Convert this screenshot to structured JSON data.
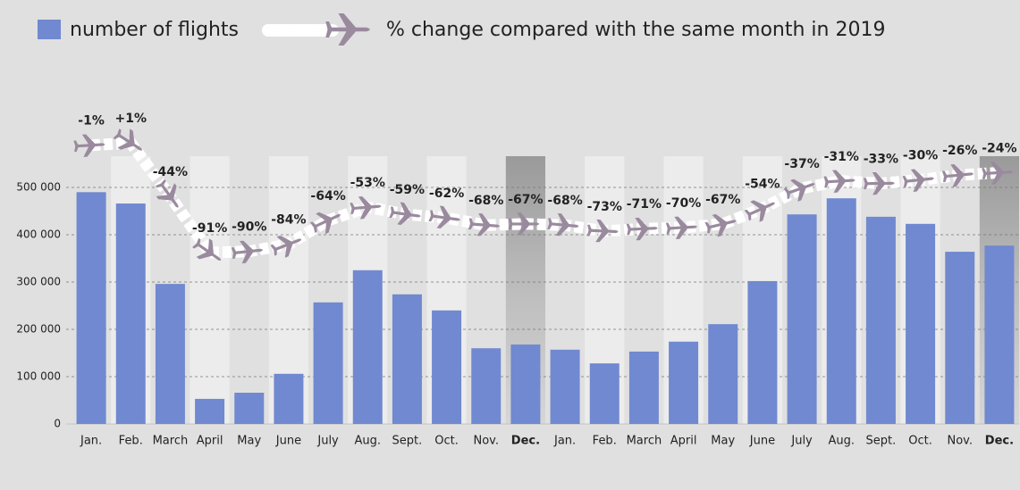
{
  "chart_data": {
    "type": "bar",
    "categories": [
      "Jan.",
      "Feb.",
      "March",
      "April",
      "May",
      "June",
      "July",
      "Aug.",
      "Sept.",
      "Oct.",
      "Nov.",
      "Dec.",
      "Jan.",
      "Feb.",
      "March",
      "April",
      "May",
      "June",
      "July",
      "Aug.",
      "Sept.",
      "Oct.",
      "Nov.",
      "Dec."
    ],
    "series": [
      {
        "name": "number of flights",
        "color": "#7089d0",
        "values": [
          490000,
          466000,
          296000,
          53000,
          66000,
          106000,
          257000,
          325000,
          274000,
          240000,
          160000,
          168000,
          157000,
          128000,
          153000,
          174000,
          211000,
          302000,
          443000,
          477000,
          438000,
          423000,
          364000,
          377000
        ]
      },
      {
        "name": "% change compared with the same month in 2019",
        "color": "#9a8a9e",
        "type": "line",
        "axis": "y2",
        "values": [
          -1,
          1,
          -44,
          -91,
          -90,
          -84,
          -64,
          -53,
          -59,
          -62,
          -68,
          -67,
          -68,
          -73,
          -71,
          -70,
          -67,
          -54,
          -37,
          -31,
          -33,
          -30,
          -26,
          -24
        ],
        "value_labels": [
          "-1%",
          "+1%",
          "-44%",
          "-91%",
          "-90%",
          "-84%",
          "-64%",
          "-53%",
          "-59%",
          "-62%",
          "-68%",
          "-67%",
          "-68%",
          "-73%",
          "-71%",
          "-70%",
          "-67%",
          "-54%",
          "-37%",
          "-31%",
          "-33%",
          "-30%",
          "-26%",
          "-24%"
        ]
      }
    ],
    "ylim": [
      0,
      500000
    ],
    "yticks": [
      0,
      {
        "value": 100000,
        "label": "100 000"
      },
      {
        "value": 200000,
        "label": "200 000"
      },
      {
        "value": 300000,
        "label": "300 000"
      },
      {
        "value": 400000,
        "label": "400 000"
      },
      {
        "value": 500000,
        "label": "500 000"
      }
    ],
    "y2lim": [
      -100,
      10
    ],
    "grid": true,
    "positive_color": "#6a86c8",
    "negative_color": "#e8553a"
  }
}
